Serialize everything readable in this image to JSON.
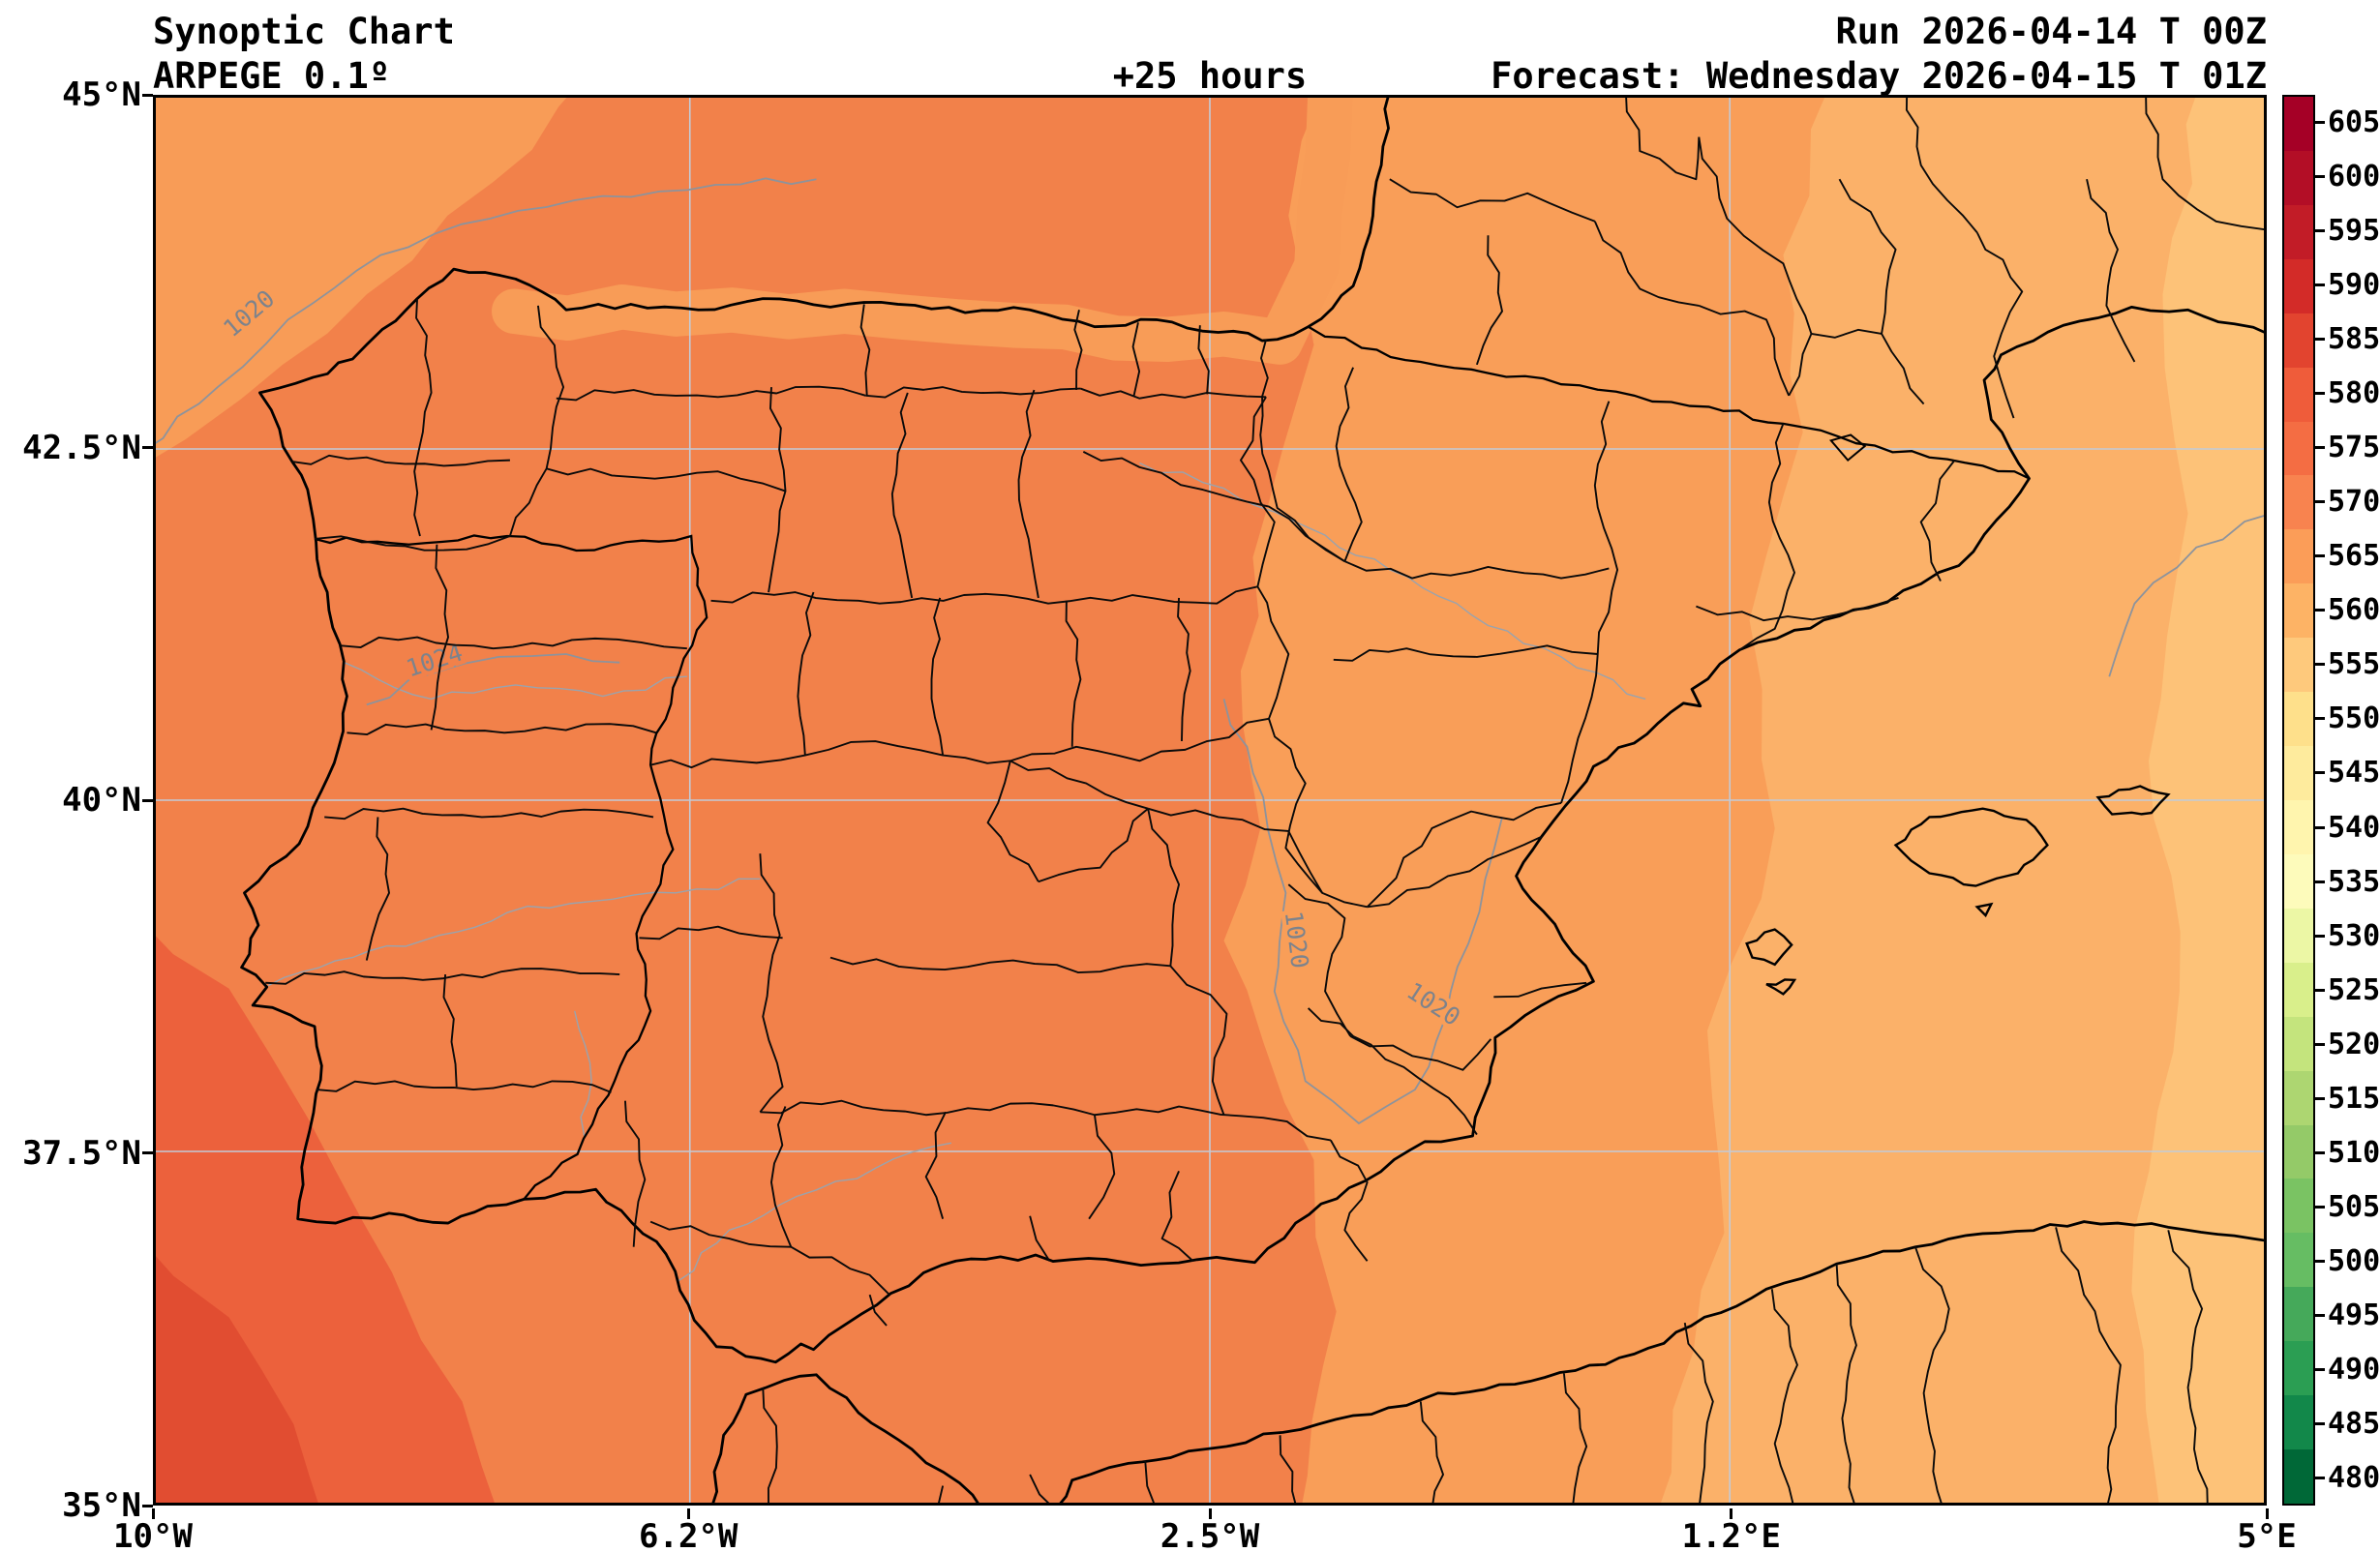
{
  "header": {
    "title": "Synoptic Chart",
    "model": "ARPEGE 0.1º",
    "lead": "+25 hours",
    "run": "Run 2026-04-14 T 00Z",
    "forecast": "Forecast: Wednesday 2026-04-15 T 01Z"
  },
  "axes": {
    "x_ticks": [
      "10°W",
      "6.2°W",
      "2.5°W",
      "1.2°E",
      "5°E"
    ],
    "y_ticks": [
      "45°N",
      "42.5°N",
      "40°N",
      "37.5°N",
      "35°N"
    ]
  },
  "colorbar": {
    "ticks": [
      "605",
      "600",
      "595",
      "590",
      "585",
      "580",
      "575",
      "570",
      "565",
      "560",
      "555",
      "550",
      "545",
      "540",
      "535",
      "530",
      "525",
      "520",
      "515",
      "510",
      "505",
      "500",
      "495",
      "490",
      "485",
      "480"
    ],
    "colors": [
      "#a50026",
      "#b30e26",
      "#c21c27",
      "#d32b28",
      "#e2442f",
      "#ef5c3a",
      "#f46d43",
      "#f8834f",
      "#fb9d58",
      "#fdb365",
      "#fec97c",
      "#fee08b",
      "#feeb9d",
      "#fff5ae",
      "#fdfbbb",
      "#ecf7a5",
      "#d9ef8b",
      "#c4e47d",
      "#add671",
      "#94ca68",
      "#7ac363",
      "#66bd63",
      "#45a95a",
      "#2b9e53",
      "#12884a",
      "#006837"
    ]
  },
  "contour_labels": [
    "1020",
    "1024",
    "1020",
    "1020"
  ],
  "chart_data": {
    "type": "heatmap",
    "title": "Synoptic Chart",
    "model": "ARPEGE 0.1º",
    "run": "2026-04-14 00Z",
    "forecast_valid": "Wednesday 2026-04-15 01Z",
    "lead_hours": 25,
    "extent": {
      "lon_min": "10°W",
      "lon_max": "5°E",
      "lat_min": "35°N",
      "lat_max": "45°N"
    },
    "x_tick_labels": [
      "10°W",
      "6.2°W",
      "2.5°W",
      "1.2°E",
      "5°E"
    ],
    "y_tick_labels": [
      "35°N",
      "37.5°N",
      "40°N",
      "42.5°N",
      "45°N"
    ],
    "colorbar_ticks": [
      480,
      485,
      490,
      495,
      500,
      505,
      510,
      515,
      520,
      525,
      530,
      535,
      540,
      545,
      550,
      555,
      560,
      565,
      570,
      575,
      580,
      585,
      590,
      595,
      600,
      605
    ],
    "shading_values_by_region": {
      "atlantic_southwest_corner": 579,
      "west_and_central_iberia": 573,
      "north_coastal_strip": 569,
      "eastern_iberia_band": 567,
      "balearic_sea_band": 562,
      "far_eastern_mediterranean": 558
    },
    "isobar_contours_hpa": [
      1020,
      1024,
      1020,
      1020
    ],
    "grid": true,
    "legend_position": "right-colorbar",
    "region": "Iberian Peninsula with province boundaries, Balearic Islands, southern France, north Africa"
  }
}
